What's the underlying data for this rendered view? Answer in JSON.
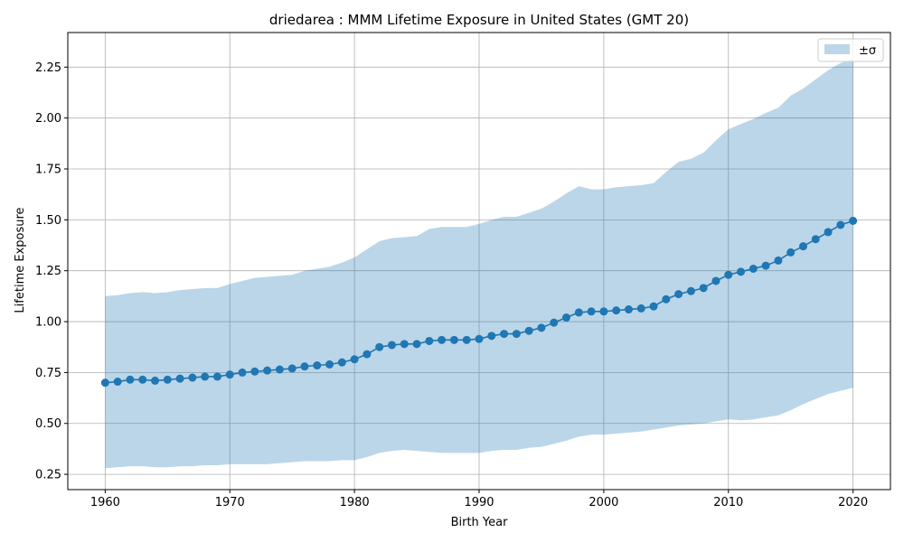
{
  "chart_data": {
    "type": "line",
    "title": "driedarea : MMM Lifetime Exposure in United States (GMT 20)",
    "xlabel": "Birth Year",
    "ylabel": "Lifetime Exposure",
    "xlim": [
      1957,
      2023
    ],
    "ylim": [
      0.175,
      2.42
    ],
    "xticks": [
      1960,
      1970,
      1980,
      1990,
      2000,
      2010,
      2020
    ],
    "xtick_labels": [
      "1960",
      "1970",
      "1980",
      "1990",
      "2000",
      "2010",
      "2020"
    ],
    "yticks": [
      0.25,
      0.5,
      0.75,
      1.0,
      1.25,
      1.5,
      1.75,
      2.0,
      2.25
    ],
    "ytick_labels": [
      "0.25",
      "0.50",
      "0.75",
      "1.00",
      "1.25",
      "1.50",
      "1.75",
      "2.00",
      "2.25"
    ],
    "grid": true,
    "legend": {
      "placement": "top-right",
      "entries": [
        "±σ"
      ]
    },
    "colors": {
      "line": "#1f77b4",
      "band": "#1f77b4",
      "grid": "#b0b0b0"
    },
    "x": [
      1960,
      1961,
      1962,
      1963,
      1964,
      1965,
      1966,
      1967,
      1968,
      1969,
      1970,
      1971,
      1972,
      1973,
      1974,
      1975,
      1976,
      1977,
      1978,
      1979,
      1980,
      1981,
      1982,
      1983,
      1984,
      1985,
      1986,
      1987,
      1988,
      1989,
      1990,
      1991,
      1992,
      1993,
      1994,
      1995,
      1996,
      1997,
      1998,
      1999,
      2000,
      2001,
      2002,
      2003,
      2004,
      2005,
      2006,
      2007,
      2008,
      2009,
      2010,
      2011,
      2012,
      2013,
      2014,
      2015,
      2016,
      2017,
      2018,
      2019,
      2020
    ],
    "series": [
      {
        "values": [
          0.7,
          0.705,
          0.715,
          0.715,
          0.71,
          0.715,
          0.72,
          0.725,
          0.73,
          0.73,
          0.74,
          0.75,
          0.755,
          0.76,
          0.765,
          0.77,
          0.78,
          0.785,
          0.79,
          0.8,
          0.815,
          0.84,
          0.875,
          0.885,
          0.89,
          0.89,
          0.905,
          0.91,
          0.91,
          0.91,
          0.915,
          0.93,
          0.94,
          0.94,
          0.955,
          0.97,
          0.995,
          1.02,
          1.045,
          1.05,
          1.05,
          1.055,
          1.06,
          1.065,
          1.075,
          1.11,
          1.135,
          1.15,
          1.165,
          1.2,
          1.23,
          1.245,
          1.26,
          1.275,
          1.3,
          1.34,
          1.37,
          1.405,
          1.44,
          1.475,
          1.495
        ]
      }
    ],
    "band": {
      "name": "±σ",
      "upper": [
        1.125,
        1.13,
        1.14,
        1.145,
        1.14,
        1.145,
        1.155,
        1.16,
        1.165,
        1.165,
        1.185,
        1.2,
        1.215,
        1.22,
        1.225,
        1.23,
        1.25,
        1.26,
        1.27,
        1.29,
        1.315,
        1.355,
        1.395,
        1.41,
        1.415,
        1.42,
        1.455,
        1.465,
        1.465,
        1.465,
        1.48,
        1.5,
        1.515,
        1.515,
        1.535,
        1.555,
        1.59,
        1.63,
        1.665,
        1.65,
        1.65,
        1.66,
        1.665,
        1.67,
        1.68,
        1.735,
        1.785,
        1.8,
        1.83,
        1.89,
        1.945,
        1.97,
        1.995,
        2.025,
        2.05,
        2.11,
        2.145,
        2.19,
        2.235,
        2.27,
        2.29
      ],
      "lower": [
        0.28,
        0.285,
        0.29,
        0.29,
        0.285,
        0.285,
        0.29,
        0.29,
        0.295,
        0.295,
        0.3,
        0.3,
        0.3,
        0.3,
        0.305,
        0.31,
        0.315,
        0.315,
        0.315,
        0.32,
        0.32,
        0.335,
        0.355,
        0.365,
        0.37,
        0.365,
        0.36,
        0.355,
        0.355,
        0.355,
        0.355,
        0.365,
        0.37,
        0.37,
        0.38,
        0.385,
        0.4,
        0.415,
        0.435,
        0.445,
        0.445,
        0.45,
        0.455,
        0.46,
        0.47,
        0.48,
        0.49,
        0.495,
        0.5,
        0.51,
        0.52,
        0.515,
        0.52,
        0.53,
        0.54,
        0.565,
        0.595,
        0.62,
        0.645,
        0.66,
        0.675
      ]
    }
  }
}
